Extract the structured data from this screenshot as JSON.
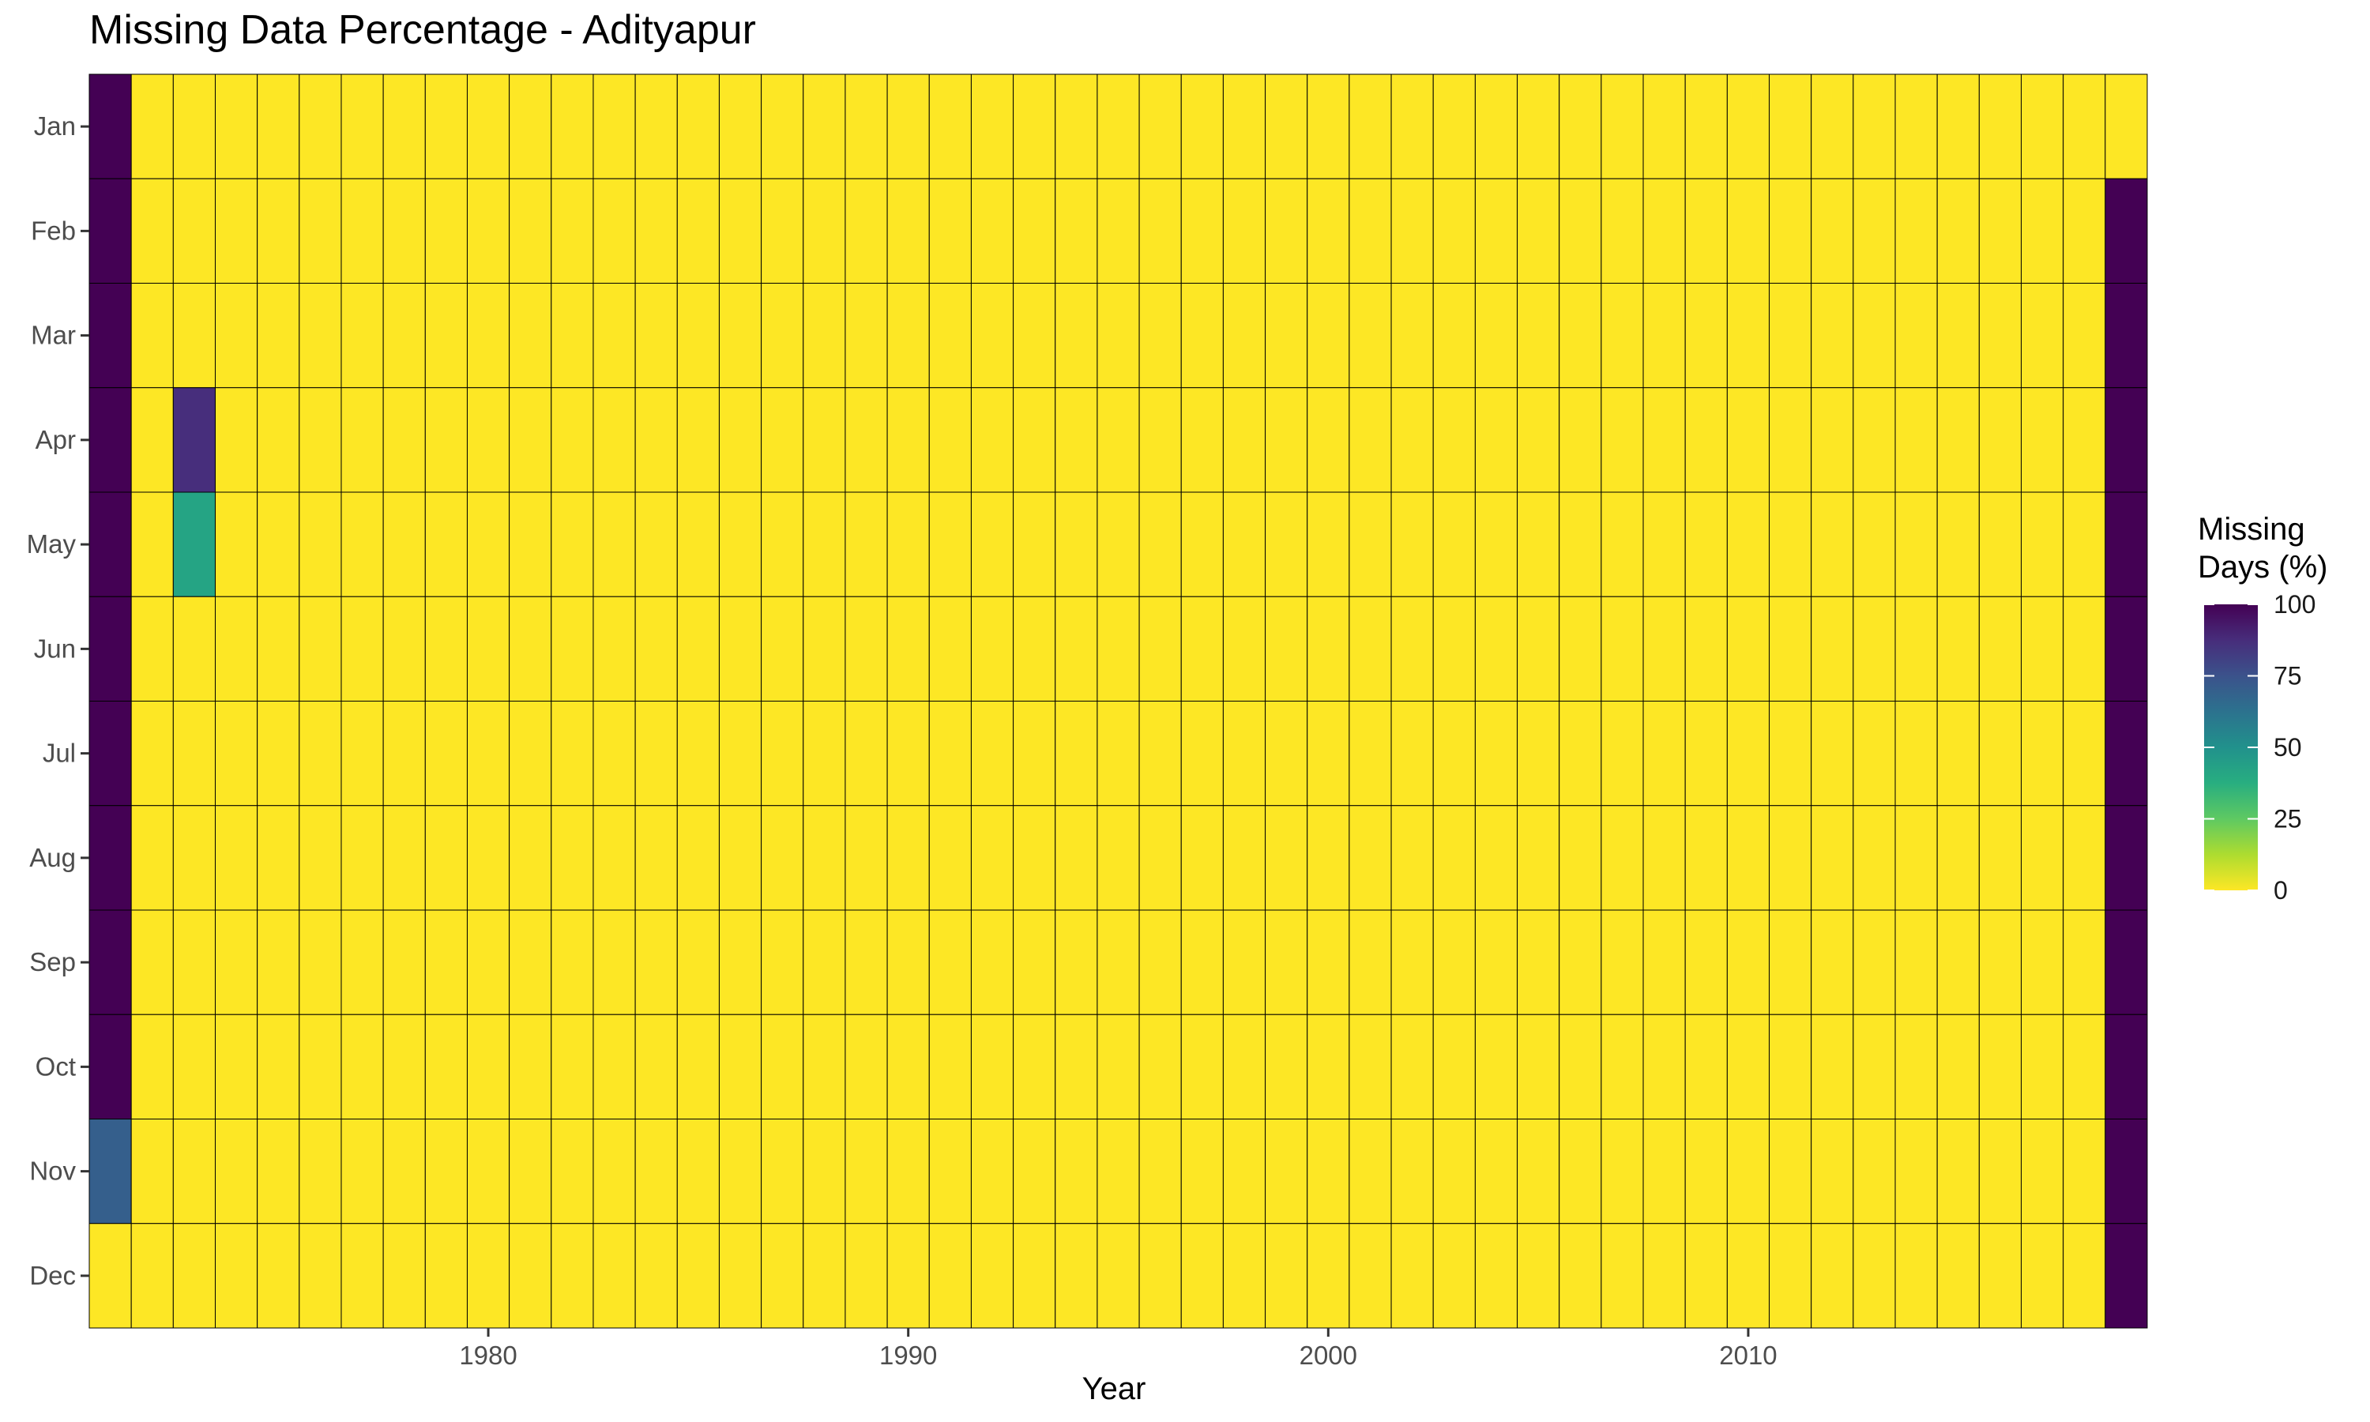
{
  "chart_data": {
    "type": "heatmap",
    "title": "Missing Data Percentage - Adityapur",
    "xlabel": "Year",
    "ylabel": "",
    "x_ticks": [
      1980,
      1990,
      2000,
      2010
    ],
    "x_range": [
      1970.5,
      2019.5
    ],
    "months": [
      "Jan",
      "Feb",
      "Mar",
      "Apr",
      "May",
      "Jun",
      "Jul",
      "Aug",
      "Sep",
      "Oct",
      "Nov",
      "Dec"
    ],
    "years": [
      1971,
      1972,
      1973,
      1974,
      1975,
      1976,
      1977,
      1978,
      1979,
      1980,
      1981,
      1982,
      1983,
      1984,
      1985,
      1986,
      1987,
      1988,
      1989,
      1990,
      1991,
      1992,
      1993,
      1994,
      1995,
      1996,
      1997,
      1998,
      1999,
      2000,
      2001,
      2002,
      2003,
      2004,
      2005,
      2006,
      2007,
      2008,
      2009,
      2010,
      2011,
      2012,
      2013,
      2014,
      2015,
      2016,
      2017,
      2018,
      2019
    ],
    "default_value": 0,
    "nonzero_cells": [
      {
        "year": 1971,
        "month": "Jan",
        "value": 100
      },
      {
        "year": 1971,
        "month": "Feb",
        "value": 100
      },
      {
        "year": 1971,
        "month": "Mar",
        "value": 100
      },
      {
        "year": 1971,
        "month": "Apr",
        "value": 100
      },
      {
        "year": 1971,
        "month": "May",
        "value": 100
      },
      {
        "year": 1971,
        "month": "Jun",
        "value": 100
      },
      {
        "year": 1971,
        "month": "Jul",
        "value": 100
      },
      {
        "year": 1971,
        "month": "Aug",
        "value": 100
      },
      {
        "year": 1971,
        "month": "Sep",
        "value": 100
      },
      {
        "year": 1971,
        "month": "Oct",
        "value": 100
      },
      {
        "year": 1971,
        "month": "Nov",
        "value": 70
      },
      {
        "year": 1973,
        "month": "Apr",
        "value": 87
      },
      {
        "year": 1973,
        "month": "May",
        "value": 42
      },
      {
        "year": 2019,
        "month": "Feb",
        "value": 100
      },
      {
        "year": 2019,
        "month": "Mar",
        "value": 100
      },
      {
        "year": 2019,
        "month": "Apr",
        "value": 100
      },
      {
        "year": 2019,
        "month": "May",
        "value": 100
      },
      {
        "year": 2019,
        "month": "Jun",
        "value": 100
      },
      {
        "year": 2019,
        "month": "Jul",
        "value": 100
      },
      {
        "year": 2019,
        "month": "Aug",
        "value": 100
      },
      {
        "year": 2019,
        "month": "Sep",
        "value": 100
      },
      {
        "year": 2019,
        "month": "Oct",
        "value": 100
      },
      {
        "year": 2019,
        "month": "Nov",
        "value": 100
      },
      {
        "year": 2019,
        "month": "Dec",
        "value": 100
      }
    ],
    "legend": {
      "title": "Missing\nDays (%)",
      "ticks": [
        0,
        25,
        50,
        75,
        100
      ],
      "range": [
        0,
        100
      ],
      "placement": "right",
      "colormap": "viridis"
    },
    "colors": {
      "viridis": [
        "#440154",
        "#472d7b",
        "#3b528b",
        "#2c728e",
        "#21918c",
        "#28ae80",
        "#5ec962",
        "#addc30",
        "#fde725"
      ],
      "cell_border": "#000000"
    }
  }
}
